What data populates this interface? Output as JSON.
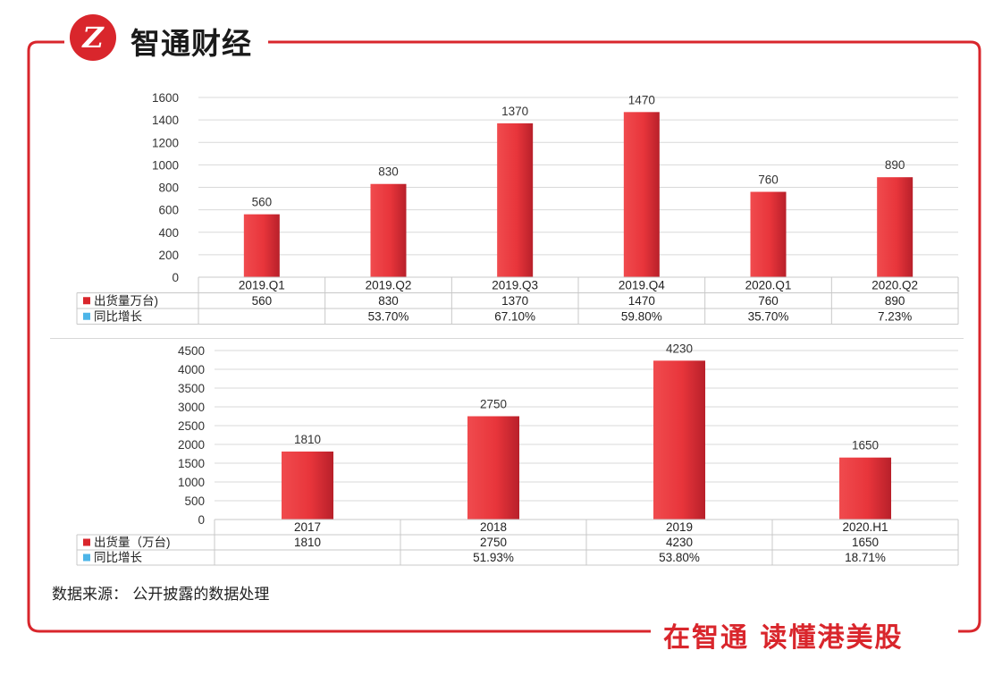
{
  "brand": {
    "name": "智通财经",
    "logo_letter": "Z",
    "slogan": "在智通  读懂港美股"
  },
  "colors": {
    "frame": "#d9262c",
    "bar_dark": "#b8202a",
    "bar_light": "#f04b4e",
    "growth_legend": "#4db5e8",
    "grid": "#d9d9d9"
  },
  "source_note": "数据来源： 公开披露的数据处理",
  "chart_data": [
    {
      "type": "bar",
      "categories": [
        "2019.Q1",
        "2019.Q2",
        "2019.Q3",
        "2019.Q4",
        "2020.Q1",
        "2020.Q2"
      ],
      "series": [
        {
          "name": "出货量万台)",
          "values": [
            560,
            830,
            1370,
            1470,
            760,
            890
          ]
        }
      ],
      "table_rows": [
        {
          "label": "出货量万台)",
          "cells": [
            "560",
            "830",
            "1370",
            "1470",
            "760",
            "890"
          ]
        },
        {
          "label": "同比增长",
          "cells": [
            "",
            "53.70%",
            "67.10%",
            "59.80%",
            "35.70%",
            "7.23%"
          ]
        }
      ],
      "data_labels": [
        "560",
        "830",
        "1370",
        "1470",
        "760",
        "890"
      ],
      "y_ticks": [
        "0",
        "200",
        "400",
        "600",
        "800",
        "1000",
        "1200",
        "1400",
        "1600"
      ],
      "ylim": [
        0,
        1600
      ],
      "grid": true,
      "legend": "table"
    },
    {
      "type": "bar",
      "categories": [
        "2017",
        "2018",
        "2019",
        "2020.H1"
      ],
      "series": [
        {
          "name": "出货量（万台)",
          "values": [
            1810,
            2750,
            4230,
            1650
          ]
        }
      ],
      "table_rows": [
        {
          "label": "出货量（万台)",
          "cells": [
            "1810",
            "2750",
            "4230",
            "1650"
          ]
        },
        {
          "label": "同比增长",
          "cells": [
            "",
            "51.93%",
            "53.80%",
            "18.71%"
          ]
        }
      ],
      "data_labels": [
        "1810",
        "2750",
        "4230",
        "1650"
      ],
      "y_ticks": [
        "0",
        "500",
        "1000",
        "1500",
        "2000",
        "2500",
        "3000",
        "3500",
        "4000",
        "4500"
      ],
      "ylim": [
        0,
        4500
      ],
      "grid": true,
      "legend": "table"
    }
  ]
}
